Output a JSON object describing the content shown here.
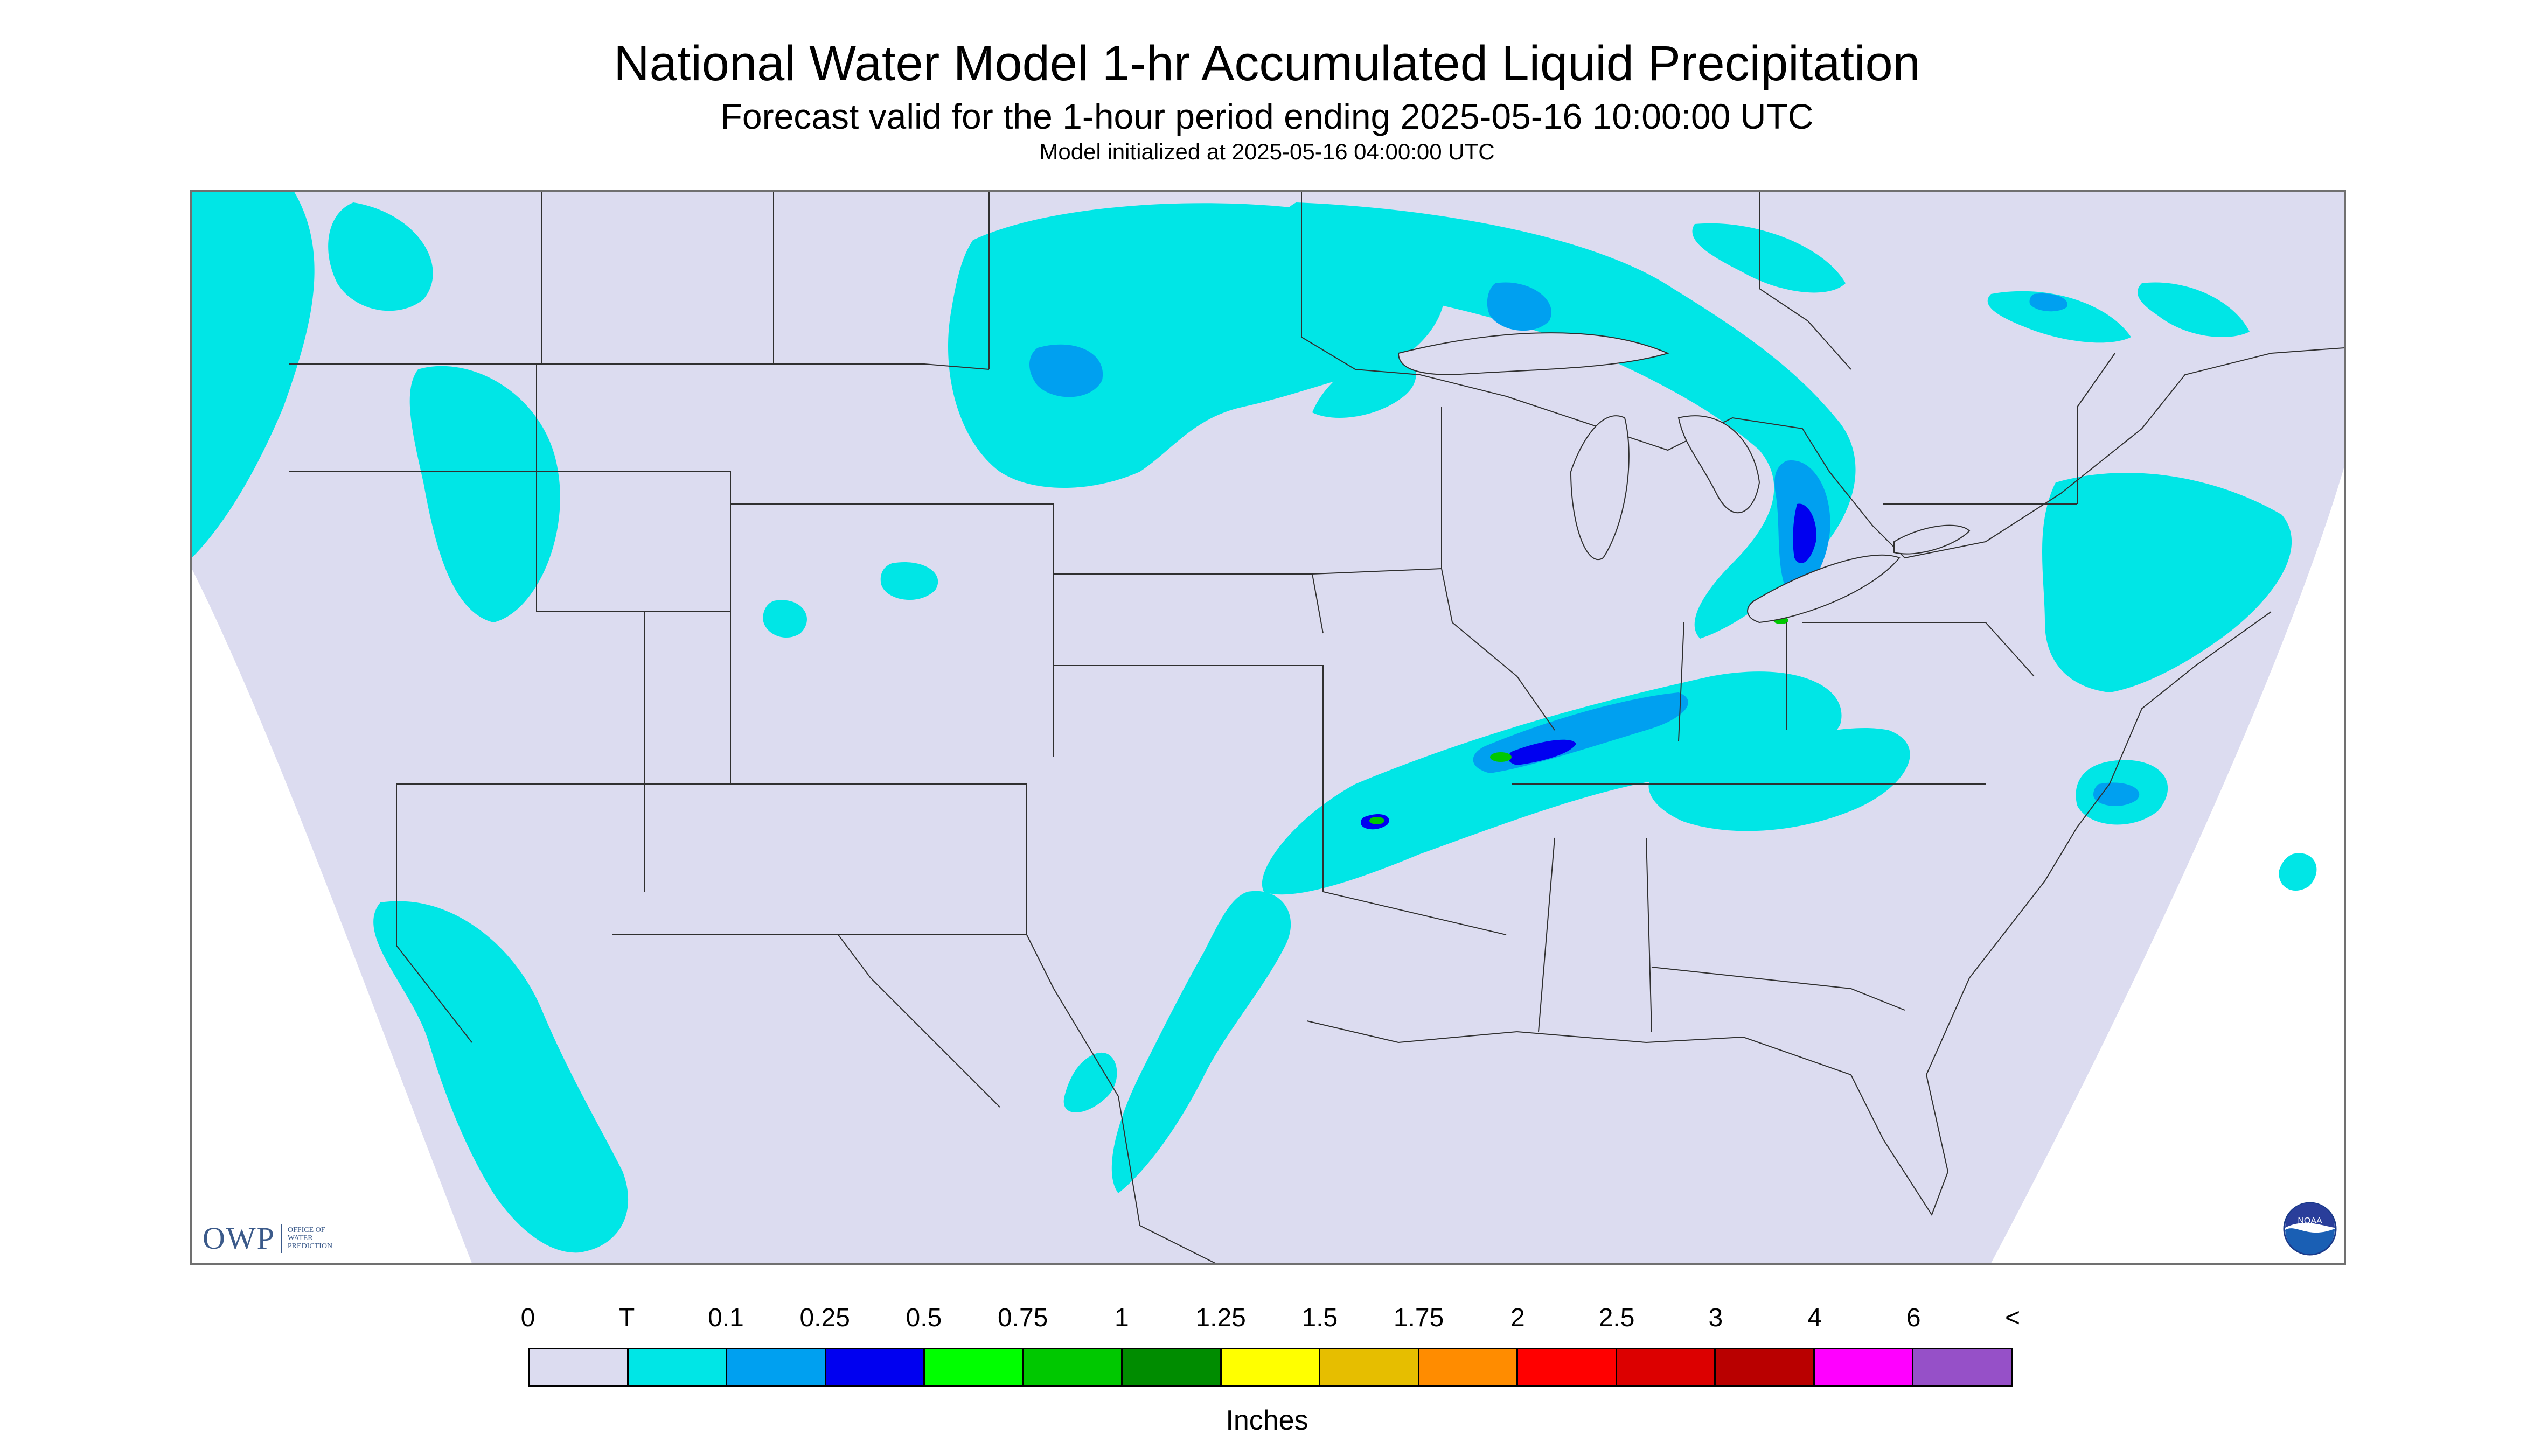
{
  "title": "National Water Model 1-hr Accumulated Liquid Precipitation",
  "subtitle": "Forecast valid for the 1-hour period ending 2025-05-16 10:00:00 UTC",
  "init_line": "Model initialized at 2025-05-16 04:00:00 UTC",
  "logos": {
    "owp_letters": "OWP",
    "owp_subtitle": [
      "OFFICE OF",
      "WATER",
      "PREDICTION"
    ],
    "noaa_text": "NOAA"
  },
  "legend": {
    "tick_labels": [
      "0",
      "T",
      "0.1",
      "0.25",
      "0.5",
      "0.75",
      "1",
      "1.25",
      "1.5",
      "1.75",
      "2",
      "2.5",
      "3",
      "4",
      "6",
      "<"
    ],
    "colors": [
      "#dcdcf0",
      "#00e6e6",
      "#00a0f0",
      "#0000f0",
      "#00ff00",
      "#00c800",
      "#008c00",
      "#ffff00",
      "#e6be00",
      "#ff8c00",
      "#ff0000",
      "#dc0000",
      "#b90000",
      "#ff00ff",
      "#9650c8"
    ],
    "units": "Inches"
  },
  "map": {
    "domain_fill": "#dcdcf0",
    "outside_fill": "#ffffff",
    "precip_light": "#00e6e6",
    "precip_med": "#00a0f0",
    "precip_heavy": "#0000f0",
    "precip_green": "#00c800",
    "boundary_color": "#303030"
  }
}
